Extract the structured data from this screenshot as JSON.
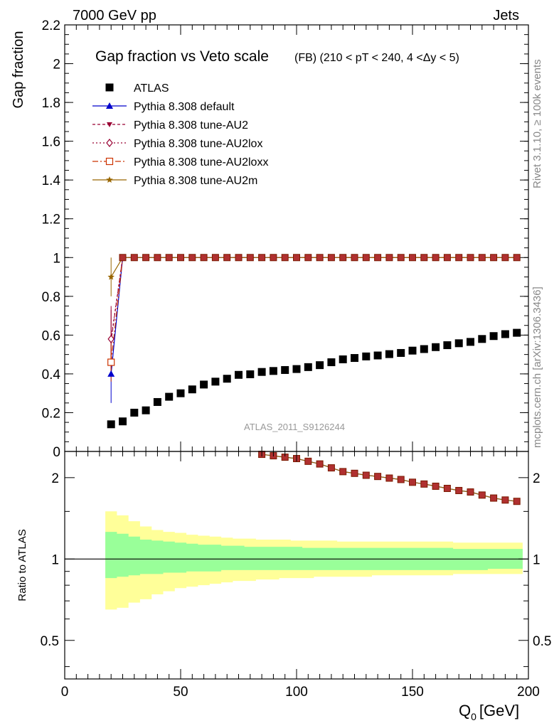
{
  "header": {
    "left": "7000 GeV pp",
    "right": "Jets"
  },
  "side": {
    "rivet": "Rivet 3.1.10, ≥ 100k events",
    "mcplots": "mcplots.cern.ch [arXiv:1306.3436]"
  },
  "chart_data": {
    "type": "scatter",
    "title": "Gap fraction vs Veto scale",
    "subtitle": "(FB) (210 < pT < 240, 4 <Δy < 5)",
    "watermark": "ATLAS_2011_S9126244",
    "xlabel": "Q",
    "xlabel_sub": "0",
    "xlabel_unit": "[GeV]",
    "ylabel": "Gap fraction",
    "ratio_ylabel": "Ratio to ATLAS",
    "xlim": [
      0,
      200
    ],
    "ylim": [
      0,
      2.2
    ],
    "ratio_ylim": [
      0.36,
      2.5
    ],
    "ratio_scale": "log",
    "xticks": [
      0,
      50,
      100,
      150,
      200
    ],
    "yticks": [
      0,
      0.2,
      0.4,
      0.6,
      0.8,
      1,
      1.2,
      1.4,
      1.6,
      1.8,
      2,
      2.2
    ],
    "ratio_yticks": [
      0.5,
      1,
      2
    ],
    "legend_position": "top-left",
    "x": [
      20,
      25,
      30,
      35,
      40,
      45,
      50,
      55,
      60,
      65,
      70,
      75,
      80,
      85,
      90,
      95,
      100,
      105,
      110,
      115,
      120,
      125,
      130,
      135,
      140,
      145,
      150,
      155,
      160,
      165,
      170,
      175,
      180,
      185,
      190,
      195
    ],
    "atlas": {
      "name": "ATLAS",
      "color": "#000000",
      "values": [
        0.14,
        0.155,
        0.2,
        0.212,
        0.255,
        0.282,
        0.3,
        0.32,
        0.345,
        0.36,
        0.375,
        0.395,
        0.398,
        0.41,
        0.415,
        0.42,
        0.425,
        0.435,
        0.445,
        0.46,
        0.475,
        0.482,
        0.49,
        0.495,
        0.502,
        0.508,
        0.52,
        0.528,
        0.538,
        0.548,
        0.558,
        0.565,
        0.58,
        0.595,
        0.605,
        0.612
      ],
      "band_inner_up": [
        1.26,
        1.24,
        1.21,
        1.18,
        1.17,
        1.16,
        1.15,
        1.14,
        1.13,
        1.13,
        1.12,
        1.12,
        1.11,
        1.11,
        1.11,
        1.11,
        1.11,
        1.1,
        1.1,
        1.1,
        1.1,
        1.1,
        1.1,
        1.1,
        1.1,
        1.1,
        1.1,
        1.1,
        1.1,
        1.1,
        1.09,
        1.09,
        1.09,
        1.09,
        1.09,
        1.09
      ],
      "band_inner_dn": [
        0.85,
        0.86,
        0.87,
        0.88,
        0.88,
        0.89,
        0.89,
        0.9,
        0.9,
        0.9,
        0.91,
        0.91,
        0.91,
        0.91,
        0.91,
        0.91,
        0.91,
        0.91,
        0.91,
        0.91,
        0.91,
        0.91,
        0.91,
        0.91,
        0.91,
        0.91,
        0.91,
        0.91,
        0.91,
        0.91,
        0.91,
        0.91,
        0.91,
        0.92,
        0.92,
        0.92
      ],
      "band_outer_up": [
        1.5,
        1.45,
        1.38,
        1.32,
        1.28,
        1.26,
        1.25,
        1.23,
        1.22,
        1.21,
        1.2,
        1.19,
        1.19,
        1.18,
        1.18,
        1.18,
        1.17,
        1.17,
        1.17,
        1.17,
        1.16,
        1.16,
        1.16,
        1.16,
        1.16,
        1.16,
        1.16,
        1.16,
        1.16,
        1.16,
        1.15,
        1.15,
        1.15,
        1.15,
        1.15,
        1.15
      ],
      "band_outer_dn": [
        0.65,
        0.66,
        0.69,
        0.71,
        0.74,
        0.76,
        0.78,
        0.79,
        0.8,
        0.81,
        0.82,
        0.83,
        0.83,
        0.84,
        0.84,
        0.85,
        0.85,
        0.85,
        0.86,
        0.86,
        0.86,
        0.86,
        0.86,
        0.87,
        0.87,
        0.87,
        0.87,
        0.87,
        0.87,
        0.87,
        0.88,
        0.88,
        0.88,
        0.88,
        0.88,
        0.88
      ]
    },
    "series": [
      {
        "name": "Pythia 8.308 default",
        "color": "#0000cc",
        "marker": "triangle-up",
        "dash": "",
        "values_lead": [
          0.4
        ],
        "err_lead": [
          0.15
        ]
      },
      {
        "name": "Pythia 8.308 tune-AU2",
        "color": "#990033",
        "marker": "triangle-down",
        "dash": "4,3",
        "values_lead": [
          0.57
        ],
        "err_lead": [
          0.18
        ]
      },
      {
        "name": "Pythia 8.308 tune-AU2lox",
        "color": "#990033",
        "marker": "diamond-open",
        "dash": "2,3",
        "values_lead": [
          0.58
        ],
        "err_lead": [
          0.15
        ]
      },
      {
        "name": "Pythia 8.308 tune-AU2loxx",
        "color": "#cc3300",
        "marker": "square-open",
        "dash": "8,3,2,3",
        "values_lead": [
          0.46
        ],
        "err_lead": [
          0.1
        ]
      },
      {
        "name": "Pythia 8.308 tune-AU2m",
        "color": "#996600",
        "marker": "star",
        "dash": "",
        "values_lead": [
          0.9
        ],
        "err_lead": [
          0.1
        ]
      }
    ],
    "mc_plateau": 1.0,
    "plateau_marker_color": "#b03030"
  }
}
